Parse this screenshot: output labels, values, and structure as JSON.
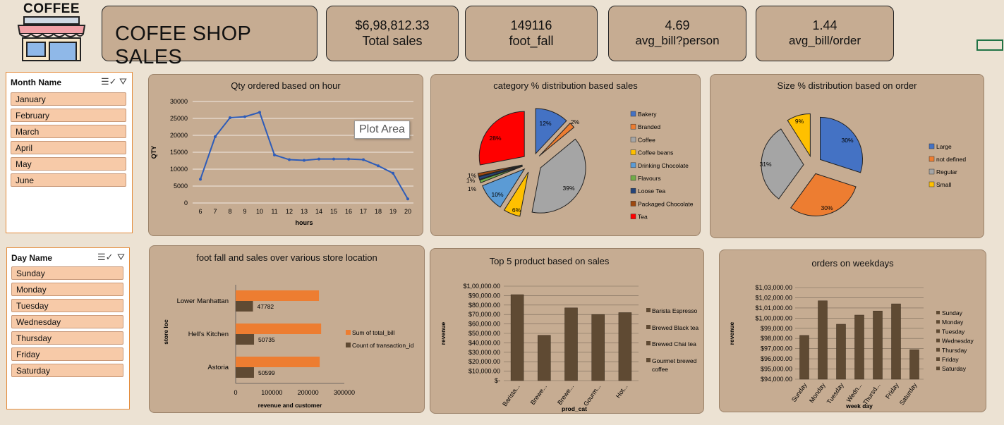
{
  "logo": {
    "text": "COFFEE"
  },
  "header": {
    "title": "COFEE SHOP SALES"
  },
  "kpis": [
    {
      "value": "$6,98,812.33",
      "label": "Total sales"
    },
    {
      "value": "149116",
      "label": "foot_fall"
    },
    {
      "value": "4.69",
      "label": "avg_bill?person"
    },
    {
      "value": "1.44",
      "label": "avg_bill/order"
    }
  ],
  "slicer_month": {
    "title": "Month Name",
    "items": [
      "January",
      "February",
      "March",
      "April",
      "May",
      "June"
    ]
  },
  "slicer_day": {
    "title": "Day Name",
    "items": [
      "Sunday",
      "Monday",
      "Tuesday",
      "Wednesday",
      "Thursday",
      "Friday",
      "Saturday"
    ]
  },
  "tooltip": {
    "text": "Plot Area"
  },
  "colors": {
    "card": "#c6ac92",
    "line": "#2e5cb8",
    "bar_orange": "#ed7d31",
    "bar_brown": "#5f4a33",
    "slicer_item": "#f7caa8"
  },
  "chart_data": [
    {
      "id": "qty_hour",
      "type": "line",
      "title": "Qty ordered based on hour",
      "xlabel": "hours",
      "ylabel": "QTY",
      "x": [
        6,
        7,
        8,
        9,
        10,
        11,
        12,
        13,
        14,
        15,
        16,
        17,
        18,
        19,
        20
      ],
      "values": [
        7000,
        19600,
        25200,
        25500,
        26800,
        14200,
        12800,
        12600,
        13000,
        13000,
        13000,
        12800,
        11000,
        8800,
        1200
      ],
      "ylim": [
        0,
        30000
      ],
      "yticks": [
        0,
        5000,
        10000,
        15000,
        20000,
        25000,
        30000
      ]
    },
    {
      "id": "category_pie",
      "type": "pie",
      "title": "category % distribution based sales",
      "legend": [
        "Bakery",
        "Branded",
        "Coffee",
        "Coffee beans",
        "Drinking Chocolate",
        "Flavours",
        "Loose Tea",
        "Packaged Chocolate",
        "Tea"
      ],
      "values": [
        12,
        2,
        39,
        6,
        10,
        1,
        1,
        1,
        28
      ],
      "labels": [
        "12%",
        "2%",
        "39%",
        "6%",
        "10%",
        "1%",
        "1%",
        "1%",
        "28%"
      ],
      "colors": [
        "#4472c4",
        "#ed7d31",
        "#a5a5a5",
        "#ffc000",
        "#5b9bd5",
        "#70ad47",
        "#264478",
        "#9e480e",
        "#ff0000"
      ]
    },
    {
      "id": "size_pie",
      "type": "pie",
      "title": "Size % distribution based on order",
      "legend": [
        "Large",
        "not defined",
        "Regular",
        "Small"
      ],
      "values": [
        30,
        30,
        31,
        9
      ],
      "labels": [
        "30%",
        "30%",
        "31%",
        "9%"
      ],
      "colors": [
        "#4472c4",
        "#ed7d31",
        "#a5a5a5",
        "#ffc000"
      ]
    },
    {
      "id": "store_bar",
      "type": "bar",
      "title": "foot fall and sales over  various store location",
      "xlabel": "revenue and customer",
      "ylabel": "store loc",
      "categories": [
        "Lower Manhattan",
        "Hell's Kitchen",
        "Astoria"
      ],
      "series": [
        {
          "name": "Sum of total_bill",
          "values": [
            230000,
            236000,
            232000
          ]
        },
        {
          "name": "Count of transaction_id",
          "values": [
            47782,
            50735,
            50599
          ]
        }
      ],
      "data_labels": [
        "47782",
        "50735",
        "50599"
      ],
      "xlim": [
        0,
        300000
      ],
      "xticks": [
        "0",
        "100000",
        "200000",
        "300000"
      ]
    },
    {
      "id": "top5",
      "type": "bar",
      "title": "Top 5 product  based on sales",
      "xlabel": "prod_cat",
      "ylabel": "revenue",
      "categories": [
        "Barista...",
        "Brewe...",
        "Brewe...",
        "Gourm...",
        "Hot..."
      ],
      "values": [
        91000,
        48000,
        77000,
        70000,
        72000
      ],
      "legend": [
        "Barista Espresso",
        "Brewed Black tea",
        "Brewed Chai tea",
        "Gourmet brewed coffee"
      ],
      "ylim": [
        0,
        100000
      ],
      "yticks": [
        "$-",
        "$10,000.00",
        "$20,000.00",
        "$30,000.00",
        "$40,000.00",
        "$50,000.00",
        "$60,000.00",
        "$70,000.00",
        "$80,000.00",
        "$90,000.00",
        "$1,00,000.00"
      ]
    },
    {
      "id": "weekday",
      "type": "bar",
      "title": "orders on weekdays",
      "xlabel": "week day",
      "ylabel": "revenue",
      "categories": [
        "Sunday",
        "Monday",
        "Tuesday",
        "Wedn...",
        "Thursd...",
        "Friday",
        "Saturday"
      ],
      "legend": [
        "Sunday",
        "Monday",
        "Tuesday",
        "Wednesday",
        "Thursday",
        "Friday",
        "Saturday"
      ],
      "values": [
        98300,
        101700,
        99400,
        100300,
        100700,
        101400,
        96900
      ],
      "ylim": [
        94000,
        103000
      ],
      "yticks": [
        "$94,000.00",
        "$95,000.00",
        "$96,000.00",
        "$97,000.00",
        "$98,000.00",
        "$99,000.00",
        "$1,00,000.00",
        "$1,01,000.00",
        "$1,02,000.00",
        "$1,03,000.00"
      ]
    }
  ]
}
